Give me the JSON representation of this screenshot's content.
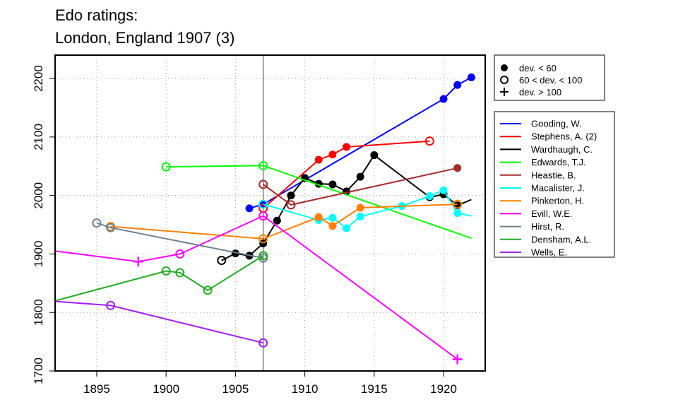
{
  "chart_data": {
    "type": "line",
    "title_line1": "Edo ratings:",
    "title_line2": "London, England 1907 (3)",
    "xlabel": "",
    "ylabel": "",
    "xlim": [
      1892,
      1923
    ],
    "ylim": [
      1700,
      2240
    ],
    "x_ticks": [
      1895,
      1900,
      1905,
      1910,
      1915,
      1920
    ],
    "y_ticks": [
      1700,
      1800,
      1900,
      2000,
      2100,
      2200
    ],
    "grid": true,
    "reference_line_x": 1907,
    "marker_legend": [
      {
        "label": "dev. < 60",
        "marker": "filled"
      },
      {
        "label": "60 < dev. < 100",
        "marker": "open"
      },
      {
        "label": "dev. > 100",
        "marker": "plus"
      }
    ],
    "series": [
      {
        "name": "Gooding, W.",
        "color": "#0000FF",
        "points": [
          [
            1906,
            1978,
            "filled"
          ],
          [
            1907,
            1985,
            "filled"
          ],
          [
            1920,
            2165,
            "filled"
          ],
          [
            1921,
            2189,
            "filled"
          ],
          [
            1922,
            2202,
            "filled"
          ]
        ]
      },
      {
        "name": "Stephens, A. (2)",
        "color": "#FF0000",
        "points": [
          [
            1907,
            1978,
            "open"
          ],
          [
            1911,
            2061,
            "filled"
          ],
          [
            1912,
            2070,
            "filled"
          ],
          [
            1913,
            2083,
            "filled"
          ],
          [
            1919,
            2093,
            "open"
          ]
        ]
      },
      {
        "name": "Wardhaugh, C.",
        "color": "#000000",
        "points": [
          [
            1904,
            1889,
            "open"
          ],
          [
            1905,
            1901,
            "filled"
          ],
          [
            1906,
            1897,
            "filled"
          ],
          [
            1907,
            1918,
            "filled"
          ],
          [
            1908,
            1957,
            "filled"
          ],
          [
            1909,
            2000,
            "filled"
          ],
          [
            1910,
            2030,
            "filled"
          ],
          [
            1911,
            2020,
            "filled"
          ],
          [
            1912,
            2019,
            "filled"
          ],
          [
            1913,
            2007,
            "filled"
          ],
          [
            1914,
            2032,
            "filled"
          ],
          [
            1915,
            2069,
            "filled"
          ],
          [
            1919,
            1997,
            "filled"
          ],
          [
            1920,
            2002,
            "filled"
          ],
          [
            1921,
            1983,
            "filled"
          ],
          [
            1922,
            1993,
            null
          ]
        ]
      },
      {
        "name": "Edwards, T.J.",
        "color": "#00FF00",
        "points": [
          [
            1900,
            2049,
            "open"
          ],
          [
            1907,
            2051,
            "open"
          ],
          [
            1922,
            1927,
            null
          ]
        ]
      },
      {
        "name": "Heastie, B.",
        "color": "#A52A2A",
        "points": [
          [
            1907,
            2019,
            "open"
          ],
          [
            1909,
            1984,
            "open"
          ],
          [
            1921,
            2047,
            "filled"
          ]
        ]
      },
      {
        "name": "Macalister, J.",
        "color": "#00FFFF",
        "points": [
          [
            1907,
            1985,
            "open"
          ],
          [
            1911,
            1958,
            "filled"
          ],
          [
            1912,
            1962,
            "filled"
          ],
          [
            1913,
            1944,
            "filled"
          ],
          [
            1914,
            1964,
            "filled"
          ],
          [
            1917,
            1982,
            "filled"
          ],
          [
            1919,
            1999,
            "filled"
          ],
          [
            1920,
            2009,
            "filled"
          ],
          [
            1921,
            1970,
            "filled"
          ],
          [
            1922,
            1965,
            null
          ]
        ]
      },
      {
        "name": "Pinkerton, H.",
        "color": "#FF7F00",
        "points": [
          [
            1896,
            1947,
            "open"
          ],
          [
            1907,
            1926,
            "open"
          ],
          [
            1911,
            1963,
            "filled"
          ],
          [
            1912,
            1948,
            "filled"
          ],
          [
            1914,
            1979,
            "filled"
          ],
          [
            1921,
            1985,
            "open"
          ]
        ]
      },
      {
        "name": "Evill, W.E.",
        "color": "#FF00FF",
        "points": [
          [
            1892,
            1905,
            null
          ],
          [
            1898,
            1887,
            "plus"
          ],
          [
            1901,
            1900,
            "open"
          ],
          [
            1907,
            1965,
            "open"
          ],
          [
            1921,
            1720,
            "plus"
          ]
        ]
      },
      {
        "name": "Hirst, R.",
        "color": "#708090",
        "points": [
          [
            1895,
            1953,
            "open"
          ],
          [
            1896,
            1945,
            "open"
          ],
          [
            1907,
            1893,
            "open"
          ]
        ]
      },
      {
        "name": "Densham, A.L.",
        "color": "#22AA22",
        "points": [
          [
            1892,
            1820,
            null
          ],
          [
            1900,
            1871,
            "open"
          ],
          [
            1901,
            1868,
            "open"
          ],
          [
            1903,
            1838,
            "open"
          ],
          [
            1907,
            1897,
            "open"
          ]
        ]
      },
      {
        "name": "Wells, E.",
        "color": "#A020F0",
        "points": [
          [
            1892,
            1819,
            null
          ],
          [
            1896,
            1812,
            "open"
          ],
          [
            1907,
            1748,
            "open"
          ]
        ]
      }
    ]
  }
}
